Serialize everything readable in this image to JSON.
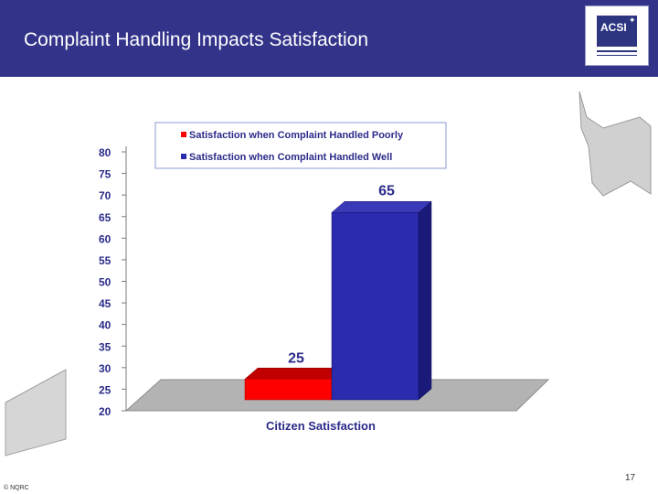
{
  "slide": {
    "title": "Complaint Handling Impacts Satisfaction",
    "logo_text": "ACSI",
    "copyright": "© NQRC",
    "page_number": "17"
  },
  "colors": {
    "header_bg": "#33338a",
    "series_poor": "#ff0000",
    "series_well": "#2b2bb0",
    "label_text": "#2b2b8a",
    "floor": "#b0b0b0"
  },
  "chart_data": {
    "type": "bar",
    "title": "",
    "xlabel": "Citizen Satisfaction",
    "ylabel": "",
    "ylim": [
      20,
      80
    ],
    "yticks": [
      80,
      75,
      70,
      65,
      60,
      55,
      50,
      45,
      40,
      35,
      30,
      25,
      20
    ],
    "categories": [
      "Citizen Satisfaction"
    ],
    "series": [
      {
        "name": "Satisfaction when Complaint Handled Poorly",
        "values": [
          25
        ],
        "label": "25"
      },
      {
        "name": "Satisfaction when Complaint Handled Well",
        "values": [
          65
        ],
        "label": "65"
      }
    ],
    "legend": "top-right"
  }
}
